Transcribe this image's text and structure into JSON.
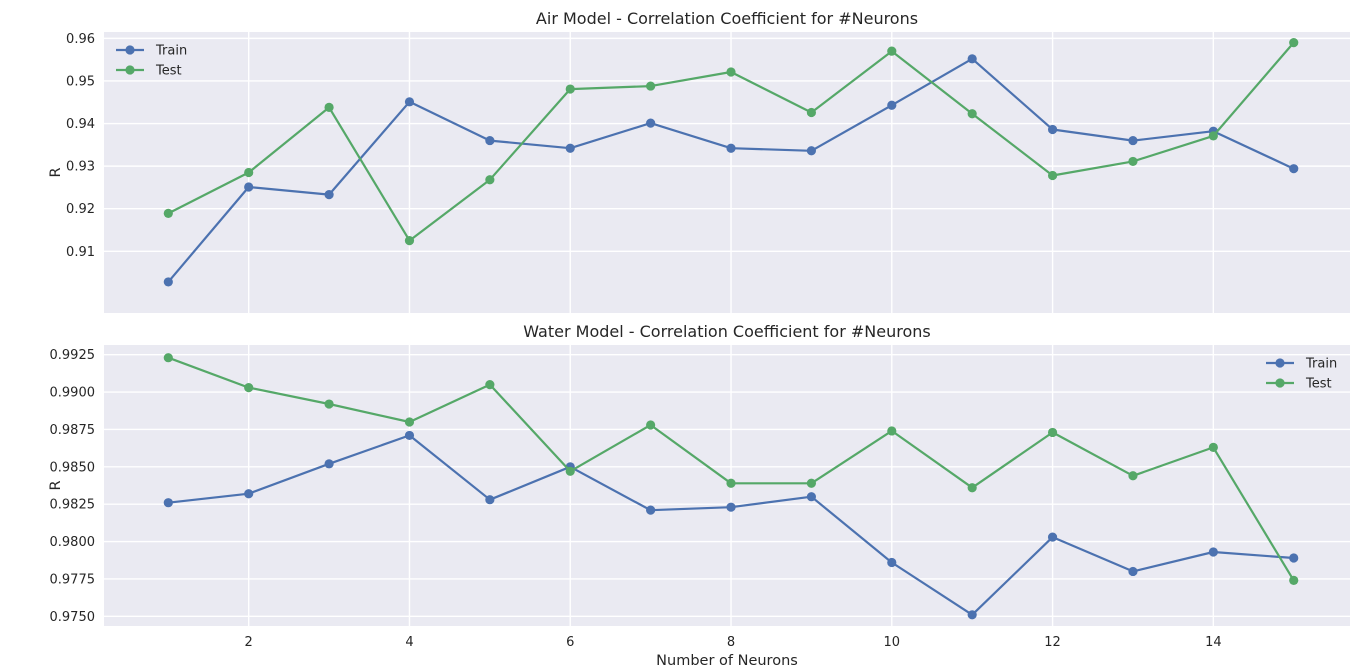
{
  "chart_data": [
    {
      "type": "line",
      "title": "Air Model - Correlation Coefficient for #Neurons",
      "xlabel": "",
      "ylabel": "R",
      "x": [
        1,
        2,
        3,
        4,
        5,
        6,
        7,
        8,
        9,
        10,
        11,
        12,
        13,
        14,
        15
      ],
      "xlim": [
        0.2,
        15.7
      ],
      "xticks": [
        2,
        4,
        6,
        8,
        10,
        12,
        14
      ],
      "ylim": [
        0.8955,
        0.9615
      ],
      "yticks": [
        0.91,
        0.92,
        0.93,
        0.94,
        0.95,
        0.96
      ],
      "ytick_labels": [
        "0.91",
        "0.92",
        "0.93",
        "0.94",
        "0.95",
        "0.96"
      ],
      "show_xtick_labels": false,
      "grid": true,
      "legend": "top-left",
      "series": [
        {
          "name": "Train",
          "color": "#4c72b0",
          "values": [
            0.9028,
            0.9251,
            0.9233,
            0.9451,
            0.936,
            0.9342,
            0.9401,
            0.9342,
            0.9336,
            0.9443,
            0.9552,
            0.9386,
            0.936,
            0.9382,
            0.9294
          ]
        },
        {
          "name": "Test",
          "color": "#55a868",
          "values": [
            0.9189,
            0.9285,
            0.9438,
            0.9125,
            0.9268,
            0.9481,
            0.9488,
            0.9521,
            0.9426,
            0.957,
            0.9423,
            0.9278,
            0.9311,
            0.9371,
            0.959
          ]
        }
      ]
    },
    {
      "type": "line",
      "title": "Water Model - Correlation Coefficient for #Neurons",
      "xlabel": "Number of Neurons",
      "ylabel": "R",
      "x": [
        1,
        2,
        3,
        4,
        5,
        6,
        7,
        8,
        9,
        10,
        11,
        12,
        13,
        14,
        15
      ],
      "xlim": [
        0.2,
        15.7
      ],
      "xticks": [
        2,
        4,
        6,
        8,
        10,
        12,
        14
      ],
      "ylim": [
        0.97435,
        0.99315
      ],
      "yticks": [
        0.975,
        0.9775,
        0.98,
        0.9825,
        0.985,
        0.9875,
        0.99,
        0.9925
      ],
      "ytick_labels": [
        "0.9750",
        "0.9775",
        "0.9800",
        "0.9825",
        "0.9850",
        "0.9875",
        "0.9900",
        "0.9925"
      ],
      "show_xtick_labels": true,
      "grid": true,
      "legend": "top-right",
      "series": [
        {
          "name": "Train",
          "color": "#4c72b0",
          "values": [
            0.9826,
            0.9832,
            0.9852,
            0.9871,
            0.9828,
            0.985,
            0.9821,
            0.9823,
            0.983,
            0.9786,
            0.9751,
            0.9803,
            0.978,
            0.9793,
            0.9789
          ]
        },
        {
          "name": "Test",
          "color": "#55a868",
          "values": [
            0.9923,
            0.9903,
            0.9892,
            0.988,
            0.9905,
            0.9847,
            0.9878,
            0.9839,
            0.9839,
            0.9874,
            0.9836,
            0.9873,
            0.9844,
            0.9863,
            0.9774
          ]
        }
      ]
    }
  ]
}
